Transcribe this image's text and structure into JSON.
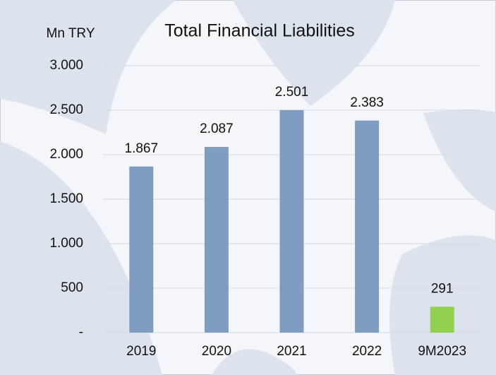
{
  "chart_data": {
    "type": "bar",
    "title": "Total Financial Liabilities",
    "y_axis_label": "Mn TRY",
    "categories": [
      "2019",
      "2020",
      "2021",
      "2022",
      "9M2023"
    ],
    "values": [
      1867,
      2087,
      2501,
      2383,
      291
    ],
    "value_labels": [
      "1.867",
      "2.087",
      "2.501",
      "2.383",
      "291"
    ],
    "colors": [
      "#7f9dc1",
      "#7f9dc1",
      "#7f9dc1",
      "#7f9dc1",
      "#92d050"
    ],
    "ylim": [
      0,
      3000
    ],
    "yticks": [
      {
        "value": 0,
        "label": "-"
      },
      500,
      {
        "value": 1000,
        "label": "1.000"
      },
      {
        "value": 1500,
        "label": "1.500"
      },
      {
        "value": 2000,
        "label": "2.000"
      },
      {
        "value": 2500,
        "label": "2.500"
      },
      {
        "value": 3000,
        "label": "3.000"
      }
    ],
    "grid": true
  }
}
